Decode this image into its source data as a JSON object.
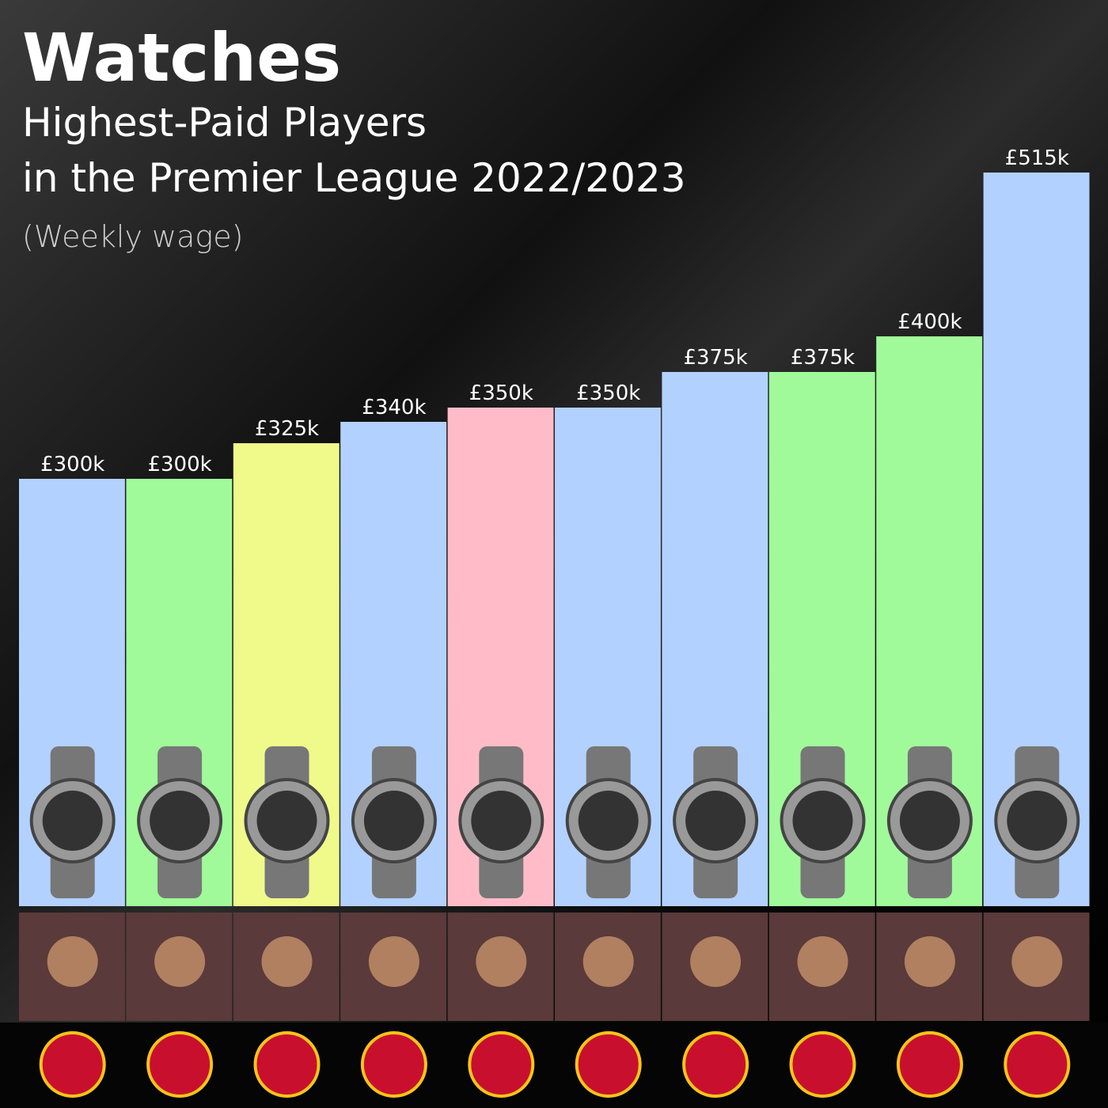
{
  "chart_data": {
    "type": "bar",
    "title": "Watches",
    "subtitle": [
      "Highest-Paid Players",
      "in the Premier League 2022/2023"
    ],
    "note": "(Weekly wage)",
    "values": [
      300,
      300,
      325,
      340,
      350,
      350,
      375,
      375,
      400,
      515
    ],
    "value_labels": [
      "£300k",
      "£300k",
      "£325k",
      "£340k",
      "£350k",
      "£350k",
      "£375k",
      "£375k",
      "£400k",
      "£515k"
    ],
    "colors": [
      "#b3d1ff",
      "#a0fa9a",
      "#f0fa8a",
      "#b3d1ff",
      "#ffbcc8",
      "#b3d1ff",
      "#b3d1ff",
      "#a0fa9a",
      "#a0fa9a",
      "#b3d1ff"
    ]
  }
}
